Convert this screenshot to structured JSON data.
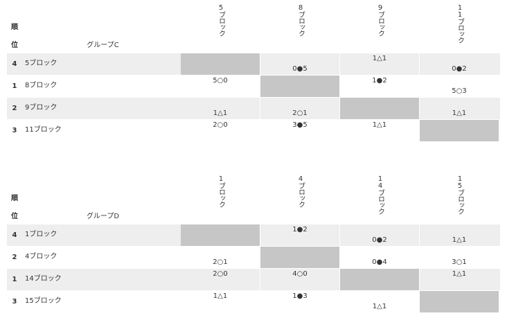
{
  "group_c": {
    "rank_header_1": "順",
    "rank_header_2": "位",
    "name": "グループC",
    "columns": [
      "5ブロック",
      "8ブロック",
      "9ブロック",
      "11ブロック"
    ],
    "rows": [
      {
        "rank": "4",
        "team": "5ブロック",
        "cells": [
          "",
          "0●5",
          "1△1",
          "0●2"
        ]
      },
      {
        "rank": "1",
        "team": "8ブロック",
        "cells": [
          "5○0",
          "",
          "1●2",
          "5○3"
        ]
      },
      {
        "rank": "2",
        "team": "9ブロック",
        "cells": [
          "1△1",
          "2○1",
          "",
          "1△1"
        ]
      },
      {
        "rank": "3",
        "team": "11ブロック",
        "cells": [
          "2○0",
          "3●5",
          "1△1",
          ""
        ]
      }
    ]
  },
  "group_d": {
    "rank_header_1": "順",
    "rank_header_2": "位",
    "name": "グループD",
    "columns": [
      "1ブロック",
      "4ブロック",
      "14ブロック",
      "15ブロック"
    ],
    "rows": [
      {
        "rank": "4",
        "team": "1ブロック",
        "cells": [
          "",
          "1●2",
          "0●2",
          "1△1"
        ]
      },
      {
        "rank": "2",
        "team": "4ブロック",
        "cells": [
          "2○1",
          "",
          "0●4",
          "3○1"
        ]
      },
      {
        "rank": "1",
        "team": "14ブロック",
        "cells": [
          "2○0",
          "4○0",
          "",
          "1△1"
        ]
      },
      {
        "rank": "3",
        "team": "15ブロック",
        "cells": [
          "1△1",
          "1●3",
          "1△1",
          ""
        ]
      }
    ]
  }
}
